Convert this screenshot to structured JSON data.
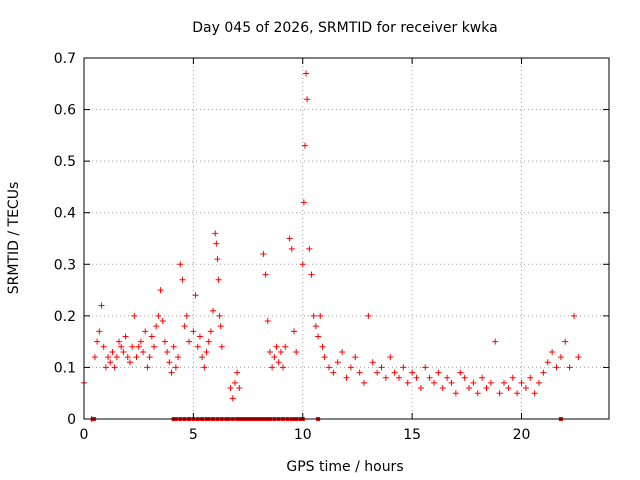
{
  "chart_data": {
    "type": "scatter",
    "title": "Day 045 of 2026, SRMTID for receiver kwka",
    "xlabel": "GPS time / hours",
    "ylabel": "SRMTID / TECUs",
    "xlim": [
      0,
      24
    ],
    "ylim": [
      0,
      0.7
    ],
    "xticks": [
      0,
      5,
      10,
      15,
      20
    ],
    "yticks": [
      0,
      0.1,
      0.2,
      0.3,
      0.4,
      0.5,
      0.6,
      0.7
    ],
    "xtick_labels": [
      "0",
      "5",
      "10",
      "15",
      "20"
    ],
    "ytick_labels": [
      "0",
      "0.1",
      "0.2",
      "0.3",
      "0.4",
      "0.5",
      "0.6",
      "0.7"
    ],
    "grid": true,
    "marker": "+",
    "color": "#ff0000",
    "series": [
      {
        "name": "SRMTID",
        "x": [
          0.0,
          0.35,
          0.5,
          0.6,
          0.7,
          0.8,
          0.9,
          1.0,
          1.1,
          1.2,
          1.3,
          1.4,
          1.5,
          1.6,
          1.7,
          1.8,
          1.9,
          2.0,
          2.1,
          2.2,
          2.3,
          2.4,
          2.5,
          2.6,
          2.7,
          2.8,
          2.9,
          3.0,
          3.1,
          3.2,
          3.3,
          3.4,
          3.5,
          3.6,
          3.7,
          3.8,
          3.9,
          4.0,
          4.1,
          4.2,
          4.3,
          4.4,
          4.5,
          4.6,
          4.7,
          4.8,
          5.0,
          5.1,
          5.2,
          5.3,
          5.4,
          5.5,
          5.6,
          5.7,
          5.8,
          5.9,
          6.0,
          6.05,
          6.1,
          6.15,
          6.2,
          6.25,
          6.3,
          6.7,
          6.8,
          6.9,
          7.0,
          7.1,
          8.2,
          8.3,
          8.4,
          8.5,
          8.6,
          8.7,
          8.8,
          8.9,
          9.0,
          9.1,
          9.2,
          9.4,
          9.5,
          9.6,
          9.7,
          10.0,
          10.05,
          10.1,
          10.15,
          10.2,
          10.3,
          10.4,
          10.5,
          10.6,
          10.7,
          10.8,
          10.9,
          11.0,
          11.2,
          11.4,
          11.6,
          11.8,
          12.0,
          12.2,
          12.4,
          12.6,
          12.8,
          13.0,
          13.2,
          13.4,
          13.6,
          13.8,
          14.0,
          14.2,
          14.4,
          14.6,
          14.8,
          15.0,
          15.2,
          15.4,
          15.6,
          15.8,
          16.0,
          16.2,
          16.4,
          16.6,
          16.8,
          17.0,
          17.2,
          17.4,
          17.6,
          17.8,
          18.0,
          18.2,
          18.4,
          18.6,
          18.8,
          19.0,
          19.2,
          19.4,
          19.6,
          19.8,
          20.0,
          20.2,
          20.4,
          20.6,
          20.8,
          21.0,
          21.2,
          21.4,
          21.6,
          21.8,
          22.0,
          22.2,
          22.4,
          22.6
        ],
        "y": [
          0.07,
          0.0,
          0.12,
          0.15,
          0.17,
          0.22,
          0.14,
          0.1,
          0.12,
          0.11,
          0.13,
          0.1,
          0.12,
          0.15,
          0.14,
          0.13,
          0.16,
          0.12,
          0.11,
          0.14,
          0.2,
          0.12,
          0.14,
          0.15,
          0.13,
          0.17,
          0.1,
          0.12,
          0.16,
          0.14,
          0.18,
          0.2,
          0.25,
          0.19,
          0.15,
          0.13,
          0.11,
          0.09,
          0.14,
          0.1,
          0.12,
          0.3,
          0.27,
          0.18,
          0.2,
          0.15,
          0.17,
          0.24,
          0.14,
          0.16,
          0.12,
          0.1,
          0.13,
          0.15,
          0.17,
          0.21,
          0.36,
          0.34,
          0.31,
          0.27,
          0.2,
          0.18,
          0.14,
          0.06,
          0.04,
          0.07,
          0.09,
          0.06,
          0.32,
          0.28,
          0.19,
          0.13,
          0.1,
          0.12,
          0.14,
          0.11,
          0.13,
          0.1,
          0.14,
          0.35,
          0.33,
          0.17,
          0.13,
          0.3,
          0.42,
          0.53,
          0.67,
          0.62,
          0.33,
          0.28,
          0.2,
          0.18,
          0.16,
          0.2,
          0.14,
          0.12,
          0.1,
          0.09,
          0.11,
          0.13,
          0.08,
          0.1,
          0.12,
          0.09,
          0.07,
          0.2,
          0.11,
          0.09,
          0.1,
          0.08,
          0.12,
          0.09,
          0.08,
          0.1,
          0.07,
          0.09,
          0.08,
          0.06,
          0.1,
          0.08,
          0.07,
          0.09,
          0.06,
          0.08,
          0.07,
          0.05,
          0.09,
          0.08,
          0.06,
          0.07,
          0.05,
          0.08,
          0.06,
          0.07,
          0.15,
          0.05,
          0.07,
          0.06,
          0.08,
          0.05,
          0.07,
          0.06,
          0.08,
          0.05,
          0.07,
          0.09,
          0.11,
          0.13,
          0.1,
          0.12,
          0.15,
          0.1,
          0.2,
          0.12
        ]
      }
    ],
    "zero_x": [
      0.4,
      0.45,
      4.1,
      4.2,
      4.4,
      4.6,
      4.8,
      5.0,
      5.2,
      5.4,
      5.6,
      5.7,
      5.9,
      6.1,
      6.3,
      6.5,
      6.6,
      6.8,
      7.0,
      7.1,
      7.2,
      7.3,
      7.4,
      7.5,
      7.6,
      7.7,
      7.8,
      7.9,
      8.0,
      8.1,
      8.2,
      8.3,
      8.4,
      8.5,
      8.7,
      8.9,
      9.1,
      9.3,
      9.5,
      9.6,
      9.7,
      9.9,
      10.0,
      10.7,
      21.8
    ]
  }
}
